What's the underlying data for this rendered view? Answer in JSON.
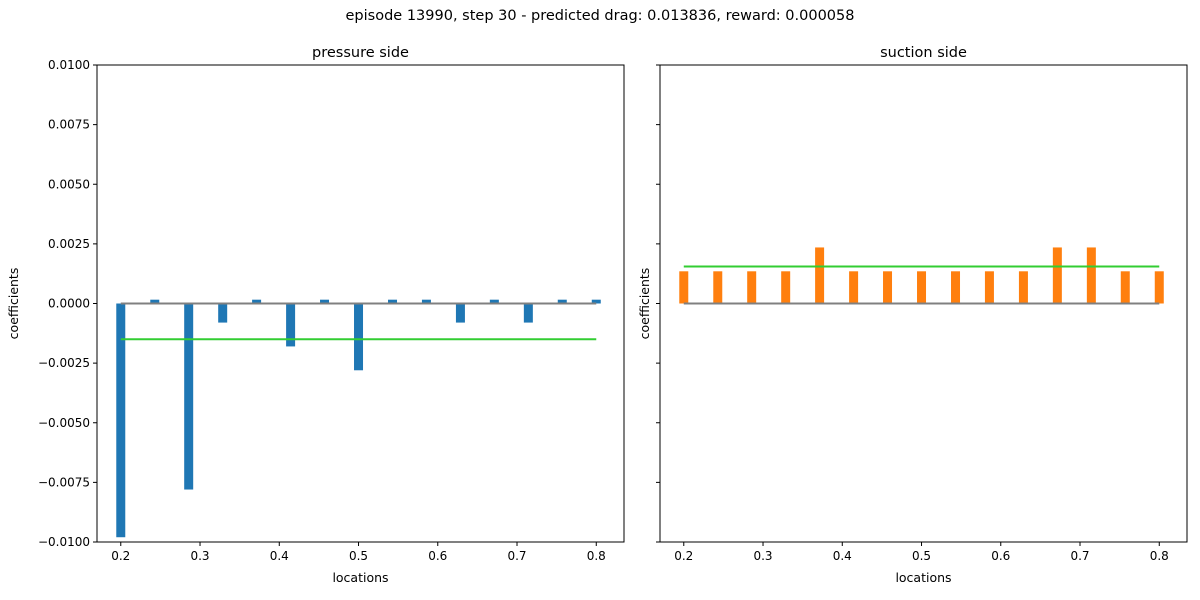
{
  "figure": {
    "title": "episode 13990, step 30 - predicted drag: 0.013836, reward: 0.000058"
  },
  "chart_data": [
    {
      "type": "bar",
      "title": "pressure side",
      "xlabel": "locations",
      "ylabel": "coefficients",
      "xlim": [
        0.17,
        0.835
      ],
      "ylim": [
        -0.01,
        0.01
      ],
      "xticks": [
        0.2,
        0.3,
        0.4,
        0.5,
        0.6,
        0.7,
        0.8
      ],
      "yticks": [
        -0.01,
        -0.0075,
        -0.005,
        -0.0025,
        0.0,
        0.0025,
        0.005,
        0.0075,
        0.01
      ],
      "bar_color": "#1f77b4",
      "x": [
        0.2,
        0.2429,
        0.2857,
        0.3286,
        0.3714,
        0.4143,
        0.4571,
        0.5,
        0.5429,
        0.5857,
        0.6286,
        0.6714,
        0.7143,
        0.7571,
        0.8
      ],
      "values": [
        -0.0098,
        0.00016,
        -0.0078,
        -0.0008,
        0.00016,
        -0.0018,
        0.00016,
        -0.0028,
        0.00016,
        0.00016,
        -0.0008,
        0.00016,
        -0.0008,
        0.00016,
        0.00016
      ],
      "mean_line": {
        "value": -0.0015,
        "color": "#32cd32",
        "x": [
          0.2,
          0.8
        ]
      },
      "zero_line": {
        "value": 0.0,
        "color": "#808080",
        "x": [
          0.2,
          0.8
        ]
      }
    },
    {
      "type": "bar",
      "title": "suction side",
      "xlabel": "locations",
      "ylabel": "coefficients",
      "xlim": [
        0.17,
        0.835
      ],
      "ylim": [
        -0.01,
        0.01
      ],
      "xticks": [
        0.2,
        0.3,
        0.4,
        0.5,
        0.6,
        0.7,
        0.8
      ],
      "yticks": [
        -0.01,
        -0.0075,
        -0.005,
        -0.0025,
        0.0,
        0.0025,
        0.005,
        0.0075,
        0.01
      ],
      "bar_color": "#ff7f0e",
      "x": [
        0.2,
        0.2429,
        0.2857,
        0.3286,
        0.3714,
        0.4143,
        0.4571,
        0.5,
        0.5429,
        0.5857,
        0.6286,
        0.6714,
        0.7143,
        0.7571,
        0.8
      ],
      "values": [
        0.00135,
        0.00135,
        0.00135,
        0.00135,
        0.00235,
        0.00135,
        0.00135,
        0.00135,
        0.00135,
        0.00135,
        0.00135,
        0.00235,
        0.00235,
        0.00135,
        0.00135
      ],
      "mean_line": {
        "value": 0.00155,
        "color": "#32cd32",
        "x": [
          0.2,
          0.8
        ]
      },
      "zero_line": {
        "value": 0.0,
        "color": "#808080",
        "x": [
          0.2,
          0.8
        ]
      }
    }
  ]
}
